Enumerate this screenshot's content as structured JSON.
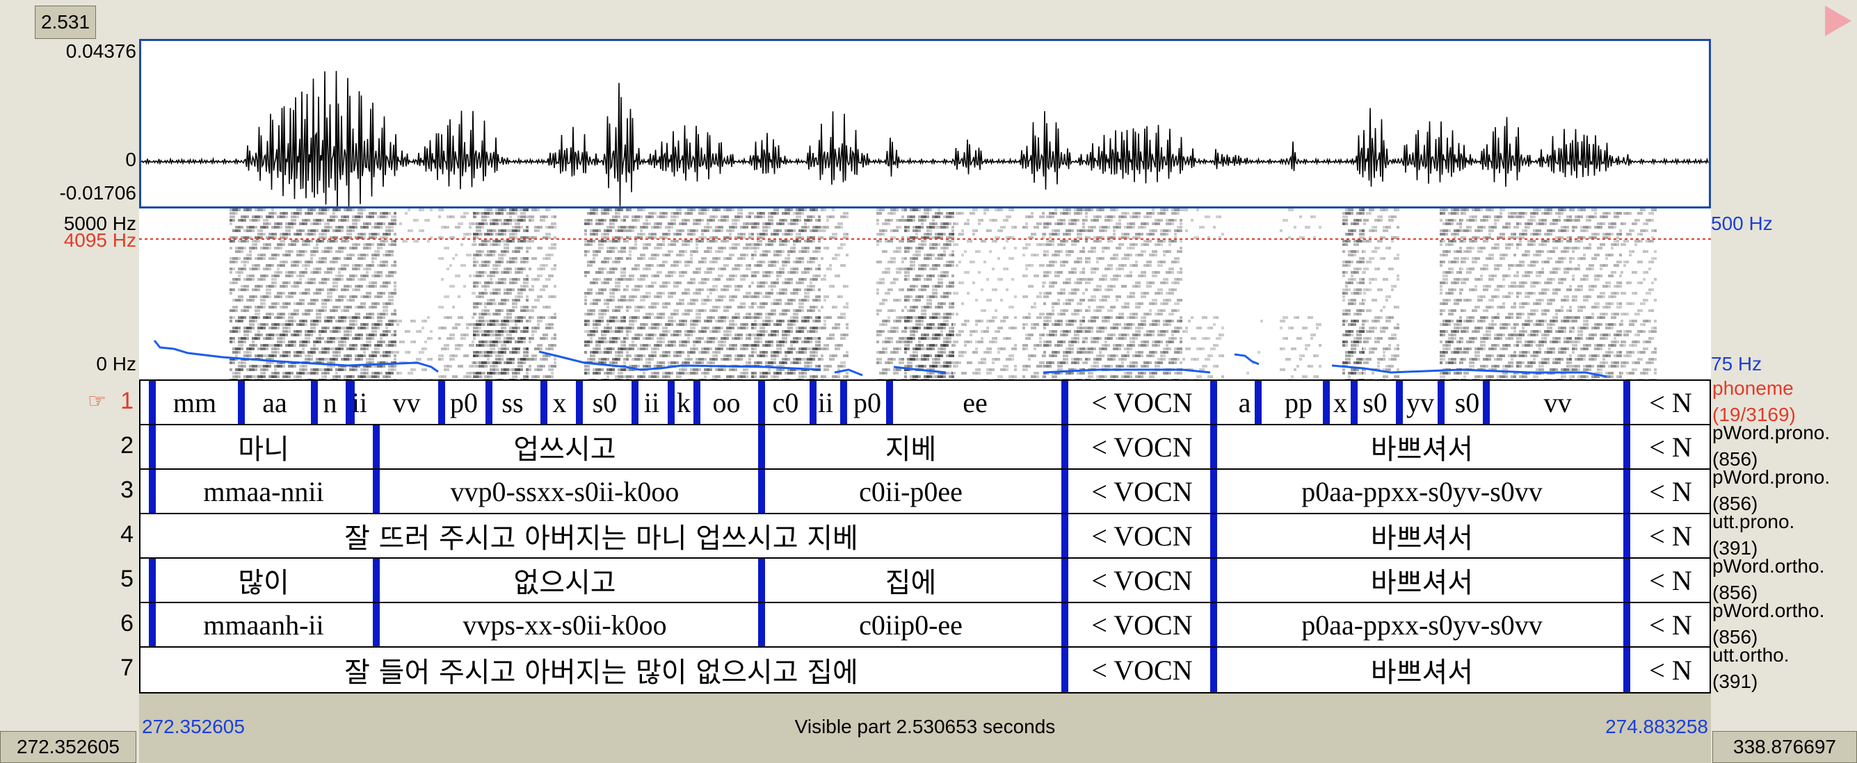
{
  "selection": {
    "duration": "2.531"
  },
  "waveform": {
    "ymax": "0.04376",
    "yzero": "0",
    "ymin": "-0.01706"
  },
  "spectrogram": {
    "fmax": "5000 Hz",
    "fcursor": "4095 Hz",
    "fmin": "0 Hz",
    "pitch_max": "500 Hz",
    "pitch_min": "75 Hz"
  },
  "tiers": [
    {
      "num": "1",
      "name": "phoneme",
      "count": "(19/3169)",
      "marker": "☞",
      "color_name": "#e23b2b",
      "cells": [
        [
          "mm",
          226,
          330
        ],
        [
          "aa",
          348,
          438
        ],
        [
          "n",
          455,
          490
        ],
        [
          "ii",
          505,
          525
        ],
        [
          "vv",
          545,
          620
        ],
        [
          "p0",
          640,
          690
        ],
        [
          "ss",
          705,
          765
        ],
        [
          "x",
          785,
          820
        ],
        [
          "s0",
          835,
          900
        ],
        [
          "ii",
          915,
          955
        ],
        [
          "k",
          970,
          992
        ],
        [
          "oo",
          1005,
          1080
        ],
        [
          "c0",
          1095,
          1160
        ],
        [
          "ii",
          1170,
          1200
        ],
        [
          "p0",
          1215,
          1275
        ],
        [
          "ee",
          1280,
          1520
        ],
        [
          "< VOCN",
          1540,
          1740
        ],
        [
          "a",
          1760,
          1815
        ],
        [
          "pp",
          1825,
          1905
        ],
        [
          "x",
          1915,
          1935
        ],
        [
          "s0",
          1945,
          2005
        ],
        [
          "yv",
          2010,
          2070
        ],
        [
          "s0",
          2075,
          2140
        ],
        [
          "vv",
          2150,
          2325
        ],
        [
          "< N",
          2345,
          2455
        ]
      ],
      "bounds": [
        212,
        340,
        445,
        495,
        498,
        628,
        696,
        775,
        826,
        906,
        958,
        995,
        1088,
        1162,
        1206,
        1272,
        1524,
        1738,
        1802,
        1900,
        1940,
        2005,
        2065,
        2130,
        2332
      ]
    },
    {
      "num": "2",
      "name": "pWord.prono.",
      "count": "(856)",
      "cells": [
        [
          "마니",
          226,
          528
        ],
        [
          "업쓰시고",
          540,
          1080
        ],
        [
          "지베",
          1095,
          1520
        ],
        [
          "< VOCN",
          1540,
          1740
        ],
        [
          "바쁘셔서",
          1760,
          2325
        ],
        [
          "< N",
          2345,
          2455
        ]
      ],
      "bounds": [
        212,
        534,
        1088,
        1524,
        1738,
        2332
      ]
    },
    {
      "num": "3",
      "name": "pWord.prono.",
      "count": "(856)",
      "cells": [
        [
          "mmaa-nnii",
          226,
          528
        ],
        [
          "vvp0-ssxx-s0ii-k0oo",
          540,
          1080
        ],
        [
          "c0ii-p0ee",
          1095,
          1520
        ],
        [
          "< VOCN",
          1540,
          1740
        ],
        [
          "p0aa-ppxx-s0yv-s0vv",
          1760,
          2325
        ],
        [
          "< N",
          2345,
          2455
        ]
      ],
      "bounds": [
        212,
        534,
        1088,
        1524,
        1738,
        2332
      ]
    },
    {
      "num": "4",
      "name": "utt.prono.",
      "count": "(391)",
      "cells": [
        [
          "잘 뜨러 주시고 아버지는 마니 업쓰시고 지베",
          205,
          1520
        ],
        [
          "< VOCN",
          1540,
          1740
        ],
        [
          "바쁘셔서",
          1760,
          2325
        ],
        [
          "< N",
          2345,
          2455
        ]
      ],
      "bounds": [
        1524,
        1738,
        2332
      ]
    },
    {
      "num": "5",
      "name": "pWord.ortho.",
      "count": "(856)",
      "cells": [
        [
          "많이",
          226,
          528
        ],
        [
          "없으시고",
          540,
          1080
        ],
        [
          "집에",
          1095,
          1520
        ],
        [
          "< VOCN",
          1540,
          1740
        ],
        [
          "바쁘셔서",
          1760,
          2325
        ],
        [
          "< N",
          2345,
          2455
        ]
      ],
      "bounds": [
        212,
        534,
        1088,
        1524,
        1738,
        2332
      ]
    },
    {
      "num": "6",
      "name": "pWord.ortho.",
      "count": "(856)",
      "cells": [
        [
          "mmaanh-ii",
          226,
          528
        ],
        [
          "vvps-xx-s0ii-k0oo",
          540,
          1080
        ],
        [
          "c0iip0-ee",
          1095,
          1520
        ],
        [
          "< VOCN",
          1540,
          1740
        ],
        [
          "p0aa-ppxx-s0yv-s0vv",
          1760,
          2325
        ],
        [
          "< N",
          2345,
          2455
        ]
      ],
      "bounds": [
        212,
        534,
        1088,
        1524,
        1738,
        2332
      ]
    },
    {
      "num": "7",
      "name": "utt.ortho.",
      "count": "(391)",
      "cells": [
        [
          "잘 들어 주시고 아버지는 많이 없으시고 집에",
          205,
          1520
        ],
        [
          "< VOCN",
          1540,
          1740
        ],
        [
          "바쁘셔서",
          1760,
          2325
        ],
        [
          "< N",
          2345,
          2455
        ]
      ],
      "bounds": [
        1524,
        1738,
        2332
      ]
    }
  ],
  "footer": {
    "total_start": "272.352605",
    "visible_start": "272.352605",
    "visible_label": "Visible part 2.530653 seconds",
    "visible_end": "274.883258",
    "total_end": "338.876697"
  },
  "colors": {
    "boundary": "#0a19c8",
    "pitch": "#1a5cf0",
    "waveform_border": "#1c4aa8",
    "cursor": "#e23b2b"
  },
  "icons": {
    "play": "play-triangle-icon",
    "pointer": "pointing-hand-icon"
  }
}
